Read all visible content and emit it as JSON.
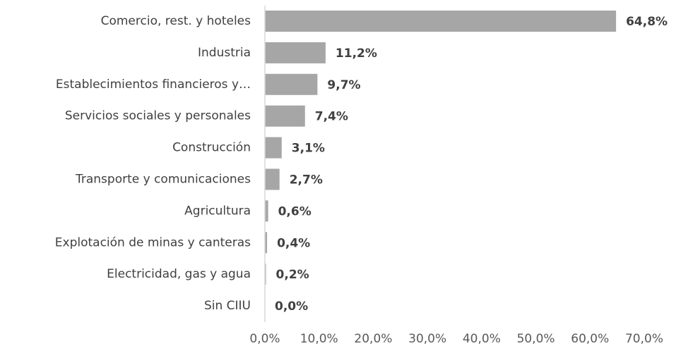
{
  "chart_data": {
    "type": "bar",
    "orientation": "horizontal",
    "categories": [
      "Comercio, rest. y hoteles",
      "Industria",
      "Establecimientos financieros y…",
      "Servicios sociales y personales",
      "Construcción",
      "Transporte y comunicaciones",
      "Agricultura",
      "Explotación de minas y canteras",
      "Electricidad, gas y agua",
      "Sin CIIU"
    ],
    "values": [
      64.8,
      11.2,
      9.7,
      7.4,
      3.1,
      2.7,
      0.6,
      0.4,
      0.2,
      0.0
    ],
    "value_labels": [
      "64,8%",
      "11,2%",
      "9,7%",
      "7,4%",
      "3,1%",
      "2,7%",
      "0,6%",
      "0,4%",
      "0,2%",
      "0,0%"
    ],
    "color": "#a6a6a6",
    "xlim": [
      0,
      70
    ],
    "xticks": [
      {
        "value": 0,
        "label": "0,0%"
      },
      {
        "value": 10,
        "label": "10,0%"
      },
      {
        "value": 20,
        "label": "20,0%"
      },
      {
        "value": 30,
        "label": "30,0%"
      },
      {
        "value": 40,
        "label": "40,0%"
      },
      {
        "value": 50,
        "label": "50,0%"
      },
      {
        "value": 60,
        "label": "60,0%"
      },
      {
        "value": 70,
        "label": "70,0%"
      }
    ],
    "grid": false
  }
}
